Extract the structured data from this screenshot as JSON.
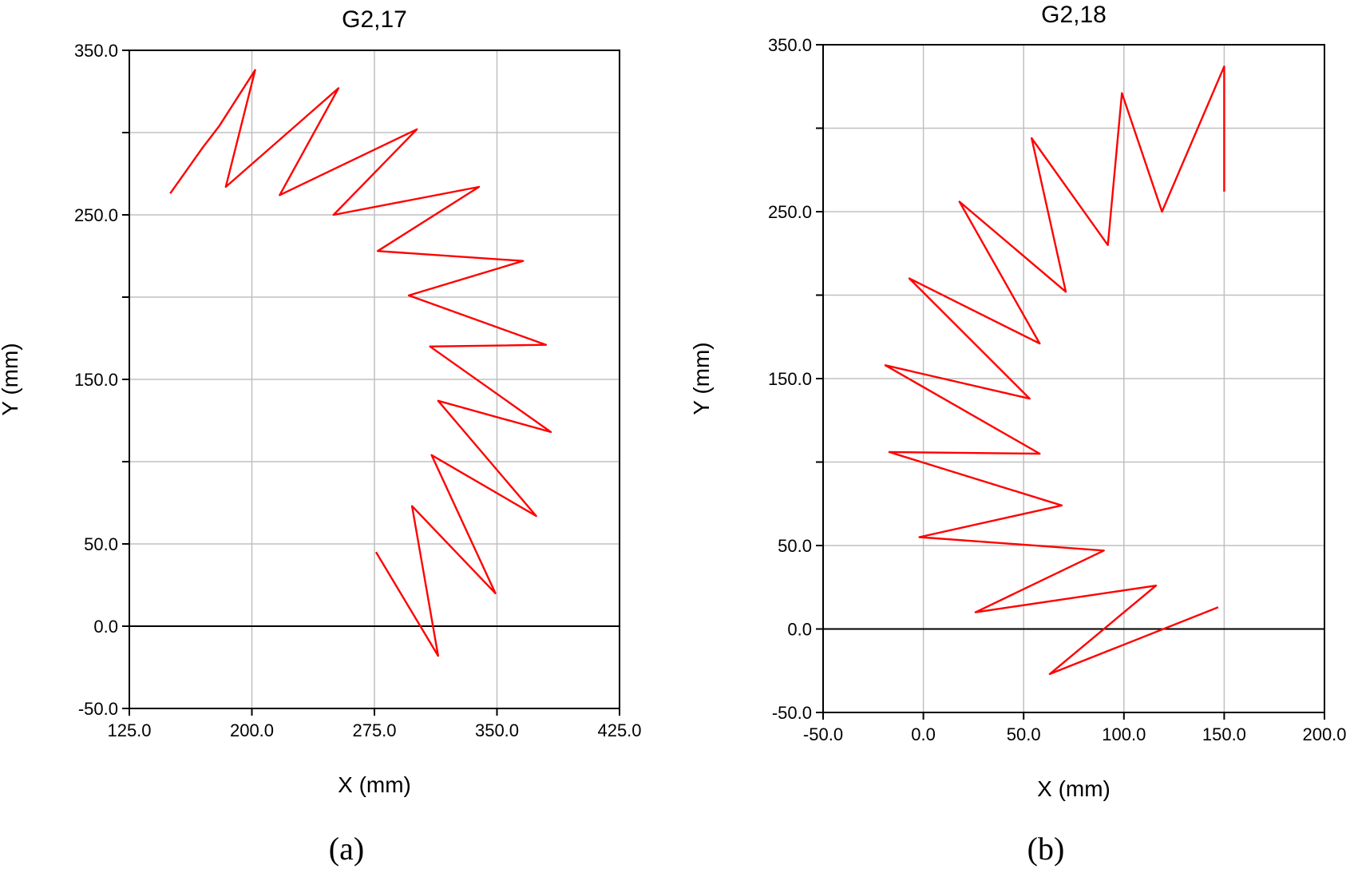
{
  "chart_data": [
    {
      "type": "line",
      "panel_caption": "(a)",
      "title": "G2,17",
      "xlabel": "X (mm)",
      "ylabel": "Y (mm)",
      "xlim": [
        125,
        425
      ],
      "ylim": [
        -50,
        350
      ],
      "x_ticks": [
        125,
        200,
        275,
        350,
        425
      ],
      "x_tick_labels": [
        "125.0",
        "200.0",
        "275.0",
        "350.0",
        "425.0"
      ],
      "y_ticks": [
        -50,
        0,
        50,
        100,
        150,
        200,
        250,
        300,
        350
      ],
      "y_tick_labels": [
        "-50.0",
        "0.0",
        "50.0",
        "",
        "150.0",
        "",
        "250.0",
        "",
        "350.0"
      ],
      "grid": true,
      "zero_line": true,
      "line_color": "#ff0000",
      "series": [
        {
          "x": [
            150,
            160,
            170,
            180,
            191,
            202,
            184,
            253,
            217,
            301,
            250,
            339,
            277,
            366,
            296,
            380,
            309,
            383,
            314,
            374,
            310,
            349,
            298,
            314,
            276
          ],
          "y": [
            263,
            277,
            291,
            304,
            321,
            338,
            267,
            327,
            262,
            302,
            250,
            267,
            228,
            222,
            201,
            171,
            170,
            118,
            137,
            67,
            104,
            20,
            73,
            -18,
            45
          ]
        }
      ]
    },
    {
      "type": "line",
      "panel_caption": "(b)",
      "title": "G2,18",
      "xlabel": "X (mm)",
      "ylabel": "Y (mm)",
      "xlim": [
        -50,
        200
      ],
      "ylim": [
        -50,
        350
      ],
      "x_ticks": [
        -50,
        0,
        50,
        100,
        150,
        200
      ],
      "x_tick_labels": [
        "-50.0",
        "0.0",
        "50.0",
        "100.0",
        "150.0",
        "200.0"
      ],
      "y_ticks": [
        -50,
        0,
        50,
        100,
        150,
        200,
        250,
        300,
        350
      ],
      "y_tick_labels": [
        "-50.0",
        "0.0",
        "50.0",
        "",
        "150.0",
        "",
        "250.0",
        "",
        "350.0"
      ],
      "grid": true,
      "zero_line": true,
      "line_color": "#ff0000",
      "series": [
        {
          "x": [
            150,
            150,
            119,
            99,
            92,
            54,
            71,
            18,
            58,
            -7,
            53,
            -19,
            58,
            -17,
            69,
            -2,
            90,
            26,
            116,
            63,
            147
          ],
          "y": [
            262,
            337,
            250,
            321,
            230,
            294,
            202,
            256,
            171,
            210,
            138,
            158,
            105,
            106,
            74,
            55,
            47,
            10,
            26,
            -27,
            13
          ]
        }
      ]
    }
  ]
}
